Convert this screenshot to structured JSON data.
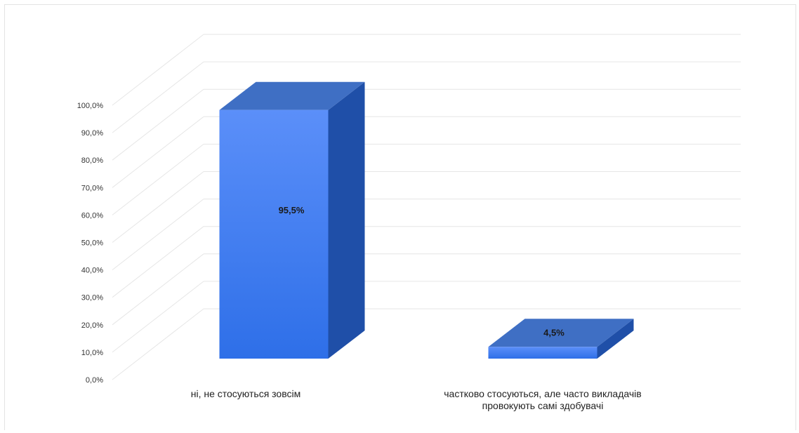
{
  "chart_data": {
    "type": "bar",
    "categories": [
      [
        "ні, не стосуються зовсім"
      ],
      [
        "частково стосуються, але часто викладачів",
        "провокують самі здобувачі"
      ]
    ],
    "values": [
      95.5,
      4.5
    ],
    "data_labels": [
      "95,5%",
      "4,5%"
    ],
    "y_ticks": [
      "0,0%",
      "10,0%",
      "20,0%",
      "30,0%",
      "40,0%",
      "50,0%",
      "60,0%",
      "70,0%",
      "80,0%",
      "90,0%",
      "100,0%"
    ],
    "ylim": [
      0,
      100
    ],
    "grid": true,
    "style": "3d-column",
    "colors": {
      "front_top": "#5b8ff9",
      "front_bottom": "#2e6fe8",
      "side": "#1f4fa8",
      "top": "#3f6fc4",
      "grid": "#e6e6e6"
    }
  }
}
